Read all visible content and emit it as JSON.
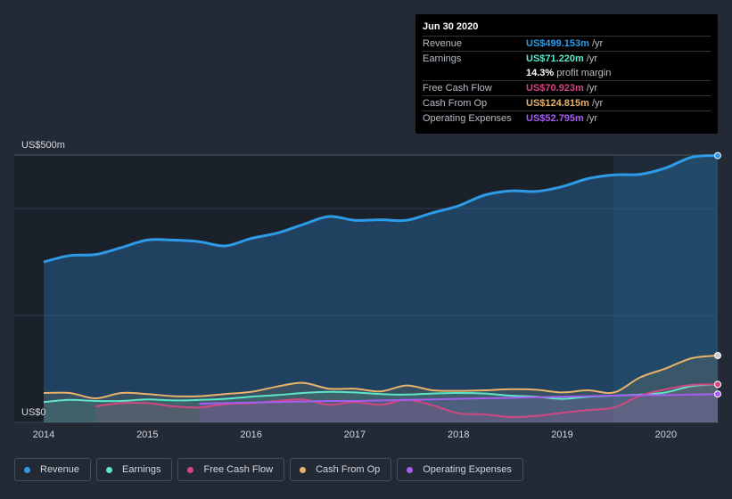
{
  "chart_data": {
    "type": "area",
    "y_unit_label": "US$500m",
    "y_zero_label": "US$0",
    "ylim": [
      0,
      500
    ],
    "x_ticks": [
      "2014",
      "2015",
      "2016",
      "2017",
      "2018",
      "2019",
      "2020"
    ],
    "x_range": [
      2014,
      2020.5
    ],
    "series": [
      {
        "name": "Revenue",
        "color": "#2e9be8",
        "x": [
          2014.0,
          2014.25,
          2014.5,
          2014.75,
          2015.0,
          2015.25,
          2015.5,
          2015.75,
          2016.0,
          2016.25,
          2016.5,
          2016.75,
          2017.0,
          2017.25,
          2017.5,
          2017.75,
          2018.0,
          2018.25,
          2018.5,
          2018.75,
          2019.0,
          2019.25,
          2019.5,
          2019.75,
          2020.0,
          2020.25,
          2020.5
        ],
        "values": [
          300,
          312,
          314,
          327,
          341,
          341,
          338,
          330,
          344,
          354,
          370,
          385,
          378,
          379,
          378,
          392,
          405,
          425,
          433,
          432,
          441,
          456,
          463,
          464,
          476,
          496,
          499
        ]
      },
      {
        "name": "Earnings",
        "color": "#5ee6c8",
        "x": [
          2014.0,
          2014.25,
          2014.5,
          2014.75,
          2015.0,
          2015.25,
          2015.5,
          2015.75,
          2016.0,
          2016.25,
          2016.5,
          2016.75,
          2017.0,
          2017.25,
          2017.5,
          2017.75,
          2018.0,
          2018.25,
          2018.5,
          2018.75,
          2019.0,
          2019.25,
          2019.5,
          2019.75,
          2020.0,
          2020.25,
          2020.5
        ],
        "values": [
          38,
          42,
          40,
          40,
          43,
          41,
          42,
          44,
          48,
          51,
          55,
          57,
          56,
          53,
          52,
          54,
          55,
          54,
          50,
          48,
          44,
          48,
          50,
          52,
          56,
          68,
          71
        ]
      },
      {
        "name": "Free Cash Flow",
        "color": "#d1477f",
        "x": [
          2014.5,
          2014.75,
          2015.0,
          2015.25,
          2015.5,
          2015.75,
          2016.0,
          2016.25,
          2016.5,
          2016.75,
          2017.0,
          2017.25,
          2017.5,
          2017.75,
          2018.0,
          2018.25,
          2018.5,
          2018.75,
          2019.0,
          2019.25,
          2019.5,
          2019.75,
          2020.0,
          2020.25,
          2020.5
        ],
        "values": [
          30,
          36,
          36,
          30,
          28,
          34,
          36,
          40,
          43,
          33,
          38,
          33,
          42,
          32,
          17,
          15,
          10,
          12,
          18,
          23,
          28,
          50,
          62,
          70,
          71
        ]
      },
      {
        "name": "Cash From Op",
        "color": "#e9b36b",
        "x": [
          2014.0,
          2014.25,
          2014.5,
          2014.75,
          2015.0,
          2015.25,
          2015.5,
          2015.75,
          2016.0,
          2016.25,
          2016.5,
          2016.75,
          2017.0,
          2017.25,
          2017.5,
          2017.75,
          2018.0,
          2018.25,
          2018.5,
          2018.75,
          2019.0,
          2019.25,
          2019.5,
          2019.75,
          2020.0,
          2020.25,
          2020.5
        ],
        "values": [
          55,
          55,
          45,
          55,
          53,
          49,
          49,
          53,
          57,
          67,
          74,
          63,
          63,
          58,
          69,
          60,
          59,
          60,
          62,
          61,
          56,
          60,
          56,
          84,
          101,
          120,
          125
        ]
      },
      {
        "name": "Operating Expenses",
        "color": "#a45ef0",
        "x": [
          2015.5,
          2015.75,
          2016.0,
          2016.25,
          2016.5,
          2016.75,
          2017.0,
          2017.25,
          2017.5,
          2017.75,
          2018.0,
          2018.25,
          2018.5,
          2018.75,
          2019.0,
          2019.25,
          2019.5,
          2019.75,
          2020.0,
          2020.25,
          2020.5
        ],
        "values": [
          35,
          36,
          37,
          38,
          39,
          40,
          40,
          41,
          42,
          43,
          44,
          45,
          46,
          47,
          48,
          49,
          50,
          51,
          51,
          52,
          53
        ]
      }
    ]
  },
  "tooltip": {
    "date": "Jun 30 2020",
    "rows": [
      {
        "label": "Revenue",
        "value": "US$499.153m",
        "unit": "/yr",
        "color": "#2e9be8"
      },
      {
        "label": "Earnings",
        "value": "US$71.220m",
        "unit": "/yr",
        "color": "#5ee6c8"
      },
      {
        "label": "",
        "value": "14.3%",
        "unit": "profit margin",
        "color": "#ffffff"
      },
      {
        "label": "Free Cash Flow",
        "value": "US$70.923m",
        "unit": "/yr",
        "color": "#d1477f"
      },
      {
        "label": "Cash From Op",
        "value": "US$124.815m",
        "unit": "/yr",
        "color": "#e9b36b"
      },
      {
        "label": "Operating Expenses",
        "value": "US$52.795m",
        "unit": "/yr",
        "color": "#a45ef0"
      }
    ]
  },
  "legend": [
    {
      "label": "Revenue",
      "color": "#2e9be8"
    },
    {
      "label": "Earnings",
      "color": "#5ee6c8"
    },
    {
      "label": "Free Cash Flow",
      "color": "#d1477f"
    },
    {
      "label": "Cash From Op",
      "color": "#e9b36b"
    },
    {
      "label": "Operating Expenses",
      "color": "#a45ef0"
    }
  ]
}
